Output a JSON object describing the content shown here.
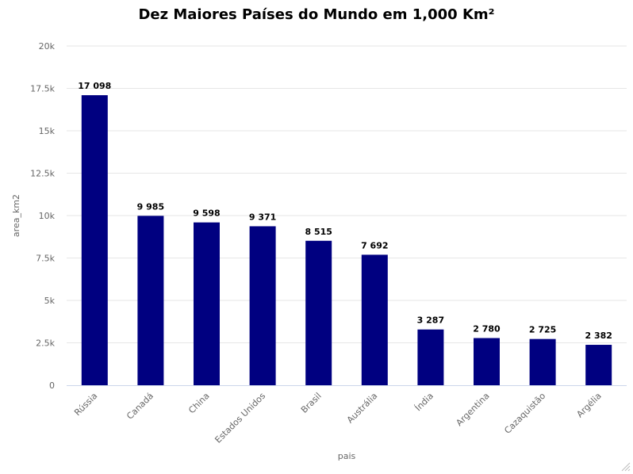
{
  "chart_data": {
    "type": "bar",
    "title": "Dez Maiores Países do Mundo em 1,000 Km²",
    "xlabel": "pais",
    "ylabel": "area_km2",
    "categories": [
      "Rússia",
      "Canadá",
      "China",
      "Estados Unidos",
      "Brasil",
      "Austrália",
      "Índia",
      "Argentina",
      "Cazaquistão",
      "Argélia"
    ],
    "values": [
      17098,
      9985,
      9598,
      9371,
      8515,
      7692,
      3287,
      2780,
      2725,
      2382
    ],
    "data_labels": [
      "17 098",
      "9 985",
      "9 598",
      "9 371",
      "8 515",
      "7 692",
      "3 287",
      "2 780",
      "2 725",
      "2 382"
    ],
    "ylim": [
      0,
      20000
    ],
    "yticks": [
      0,
      2500,
      5000,
      7500,
      10000,
      12500,
      15000,
      17500,
      20000
    ],
    "ytick_labels": [
      "0",
      "2.5k",
      "5k",
      "7.5k",
      "10k",
      "12.5k",
      "15k",
      "17.5k",
      "20k"
    ],
    "grid": true,
    "legend": "none",
    "bar_color": "#000080"
  }
}
